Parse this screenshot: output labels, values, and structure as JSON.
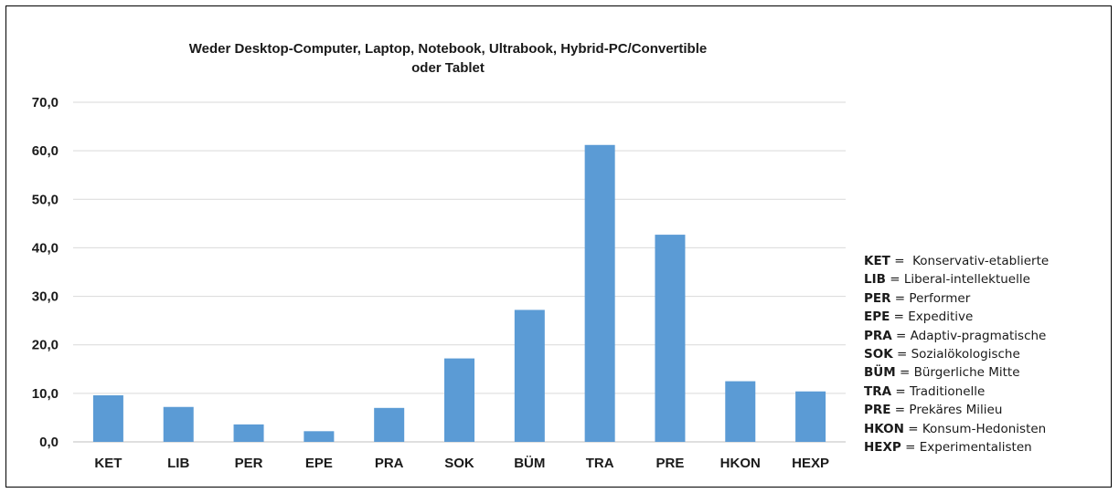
{
  "chart_data": {
    "type": "bar",
    "title_lines": [
      "Weder Desktop-Computer, Laptop, Notebook, Ultrabook, Hybrid-PC/Convertible",
      "oder  Tablet"
    ],
    "categories": [
      "KET",
      "LIB",
      "PER",
      "EPE",
      "PRA",
      "SOK",
      "BÜM",
      "TRA",
      "PRE",
      "HKON",
      "HEXP"
    ],
    "values": [
      9.6,
      7.2,
      3.6,
      2.2,
      7.0,
      17.2,
      27.2,
      61.2,
      42.7,
      12.5,
      10.4
    ],
    "yticks": [
      "0,0",
      "10,0",
      "20,0",
      "30,0",
      "40,0",
      "50,0",
      "60,0",
      "70,0"
    ],
    "ylim": [
      0,
      70
    ],
    "grid": true,
    "bar_color": "#5b9bd5",
    "legend_position": "right",
    "legend": [
      {
        "abbr": "KET",
        "sep": " =  ",
        "text": "Konservativ-etablierte"
      },
      {
        "abbr": "LIB",
        "sep": " = ",
        "text": "Liberal-intellektuelle"
      },
      {
        "abbr": "PER",
        "sep": " = ",
        "text": "Performer"
      },
      {
        "abbr": "EPE",
        "sep": " = ",
        "text": "Expeditive"
      },
      {
        "abbr": "PRA",
        "sep": " = ",
        "text": "Adaptiv-pragmatische"
      },
      {
        "abbr": "SOK",
        "sep": " = ",
        "text": "Sozialökologische"
      },
      {
        "abbr": "BÜM",
        "sep": " = ",
        "text": "Bürgerliche Mitte"
      },
      {
        "abbr": "TRA",
        "sep": " = ",
        "text": "Traditionelle"
      },
      {
        "abbr": "PRE",
        "sep": " = ",
        "text": "Prekäres Milieu"
      },
      {
        "abbr": "HKON",
        "sep": " = ",
        "text": "Konsum-Hedonisten"
      },
      {
        "abbr": "HEXP",
        "sep": " = ",
        "text": "Experimentalisten"
      }
    ]
  }
}
